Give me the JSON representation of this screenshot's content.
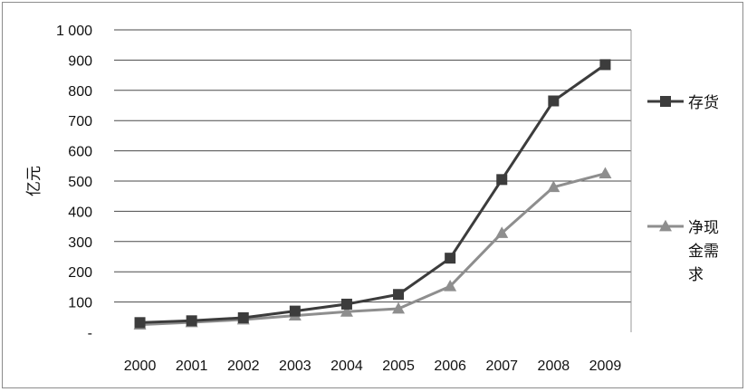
{
  "chart_data": {
    "type": "line",
    "title": "",
    "xlabel": "",
    "ylabel": "亿元",
    "ylim": [
      0,
      1000
    ],
    "y_ticks": [
      {
        "value": 0,
        "label": "-"
      },
      {
        "value": 100,
        "label": "100"
      },
      {
        "value": 200,
        "label": "200"
      },
      {
        "value": 300,
        "label": "300"
      },
      {
        "value": 400,
        "label": "400"
      },
      {
        "value": 500,
        "label": "500"
      },
      {
        "value": 600,
        "label": "600"
      },
      {
        "value": 700,
        "label": "700"
      },
      {
        "value": 800,
        "label": "800"
      },
      {
        "value": 900,
        "label": "900"
      },
      {
        "value": 1000,
        "label": "1 000"
      }
    ],
    "categories": [
      "2000",
      "2001",
      "2002",
      "2003",
      "2004",
      "2005",
      "2006",
      "2007",
      "2008",
      "2009"
    ],
    "grid": true,
    "legend_position": "right",
    "series": [
      {
        "name": "存货",
        "legend_lines": [
          "存货"
        ],
        "marker": "square",
        "color": "#3c3c3c",
        "values": [
          32,
          38,
          48,
          70,
          93,
          125,
          245,
          505,
          765,
          885
        ]
      },
      {
        "name": "净现金需求",
        "legend_lines": [
          "净现",
          "金需",
          "求"
        ],
        "marker": "triangle",
        "color": "#8e8e8e",
        "values": [
          25,
          33,
          42,
          55,
          68,
          78,
          152,
          328,
          480,
          525
        ]
      }
    ]
  }
}
